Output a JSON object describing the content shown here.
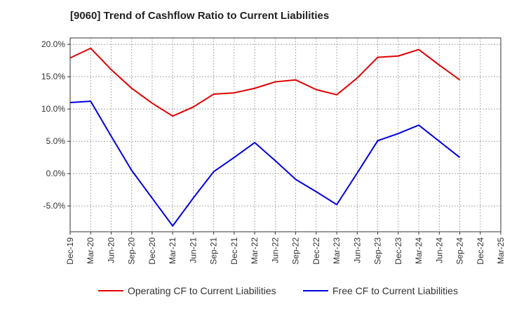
{
  "chart_data": {
    "type": "line",
    "title": "[9060]  Trend of Cashflow Ratio to Current Liabilities",
    "x": [
      "Dec-19",
      "Mar-20",
      "Jun-20",
      "Sep-20",
      "Dec-20",
      "Mar-21",
      "Jun-21",
      "Sep-21",
      "Dec-21",
      "Mar-22",
      "Jun-22",
      "Sep-22",
      "Dec-22",
      "Mar-23",
      "Jun-23",
      "Sep-23",
      "Dec-23",
      "Mar-24",
      "Jun-24",
      "Sep-24",
      "Dec-24",
      "Mar-25"
    ],
    "yticks": [
      "20.0%",
      "15.0%",
      "10.0%",
      "5.0%",
      "0.0%",
      "-5.0%"
    ],
    "ylim": [
      -9.0,
      21.0
    ],
    "grid": true,
    "legend_position": "bottom",
    "series": [
      {
        "name": "Operating CF to Current Liabilities",
        "color": "#e00000",
        "values": [
          17.9,
          19.4,
          16.1,
          13.2,
          10.9,
          8.9,
          10.3,
          12.3,
          12.5,
          13.2,
          14.2,
          14.5,
          13.0,
          12.2,
          14.8,
          18.0,
          18.2,
          19.2,
          16.8,
          14.5,
          null,
          null
        ]
      },
      {
        "name": "Free CF to Current Liabilities",
        "color": "#0000e0",
        "values": [
          11.0,
          11.2,
          5.8,
          0.5,
          -3.8,
          -8.1,
          -3.8,
          0.3,
          2.5,
          4.8,
          2.0,
          -0.9,
          -2.8,
          -4.8,
          0.1,
          5.1,
          6.2,
          7.5,
          5.0,
          2.5,
          null,
          null
        ]
      }
    ]
  }
}
